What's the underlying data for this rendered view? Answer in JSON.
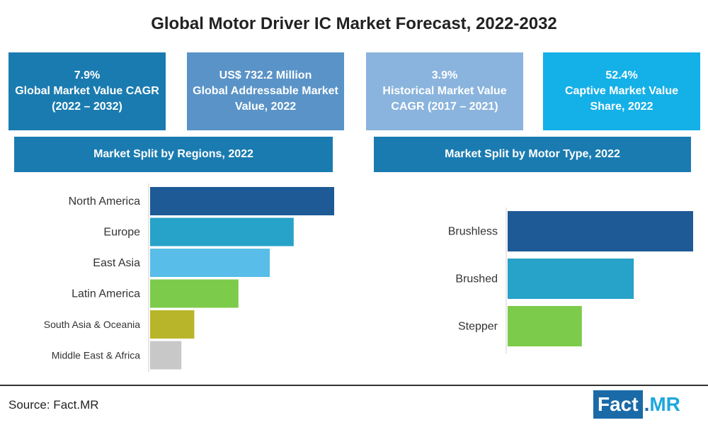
{
  "title": "Global Motor Driver IC Market Forecast, 2022-2032",
  "kpis": [
    {
      "line1": "7.9%",
      "line2": "Global Market Value CAGR (2022 – 2032)"
    },
    {
      "line1": "US$ 732.2 Million",
      "line2": "Global Addressable Market Value, 2022"
    },
    {
      "line1": "3.9%",
      "line2": "Historical Market Value CAGR (2017 – 2021)"
    },
    {
      "line1": "52.4%",
      "line2": "Captive Market Value Share, 2022"
    }
  ],
  "sections": {
    "regions": "Market Split by Regions, 2022",
    "motor_type": "Market Split by Motor Type, 2022"
  },
  "colors": {
    "kpi_1": "#1a7bb0",
    "kpi_2": "#5a93c7",
    "kpi_3": "#8ab4dd",
    "kpi_4": "#14b0e8",
    "header": "#1a7bb0"
  },
  "chart_data": [
    {
      "type": "bar",
      "orientation": "horizontal",
      "title": "Market Split by Regions, 2022",
      "categories": [
        "North America",
        "Europe",
        "East Asia",
        "Latin America",
        "South Asia & Oceania",
        "Middle East & Africa"
      ],
      "values": [
        100,
        78,
        65,
        48,
        24,
        17
      ],
      "colors": [
        "#1e5a96",
        "#27a2c8",
        "#58bde8",
        "#7ccb4a",
        "#b8b52a",
        "#c8c8c8"
      ],
      "grid": false,
      "value_labels": false
    },
    {
      "type": "bar",
      "orientation": "horizontal",
      "title": "Market Split by Motor Type, 2022",
      "categories": [
        "Brushless",
        "Brushed",
        "Stepper"
      ],
      "values": [
        100,
        68,
        40
      ],
      "colors": [
        "#1e5a96",
        "#27a2c8",
        "#7ccb4a"
      ],
      "grid": false,
      "value_labels": false
    }
  ],
  "footer": {
    "source": "Source: Fact.MR",
    "logo_fact": "Fact",
    "logo_dot": ".",
    "logo_mr": "MR"
  }
}
